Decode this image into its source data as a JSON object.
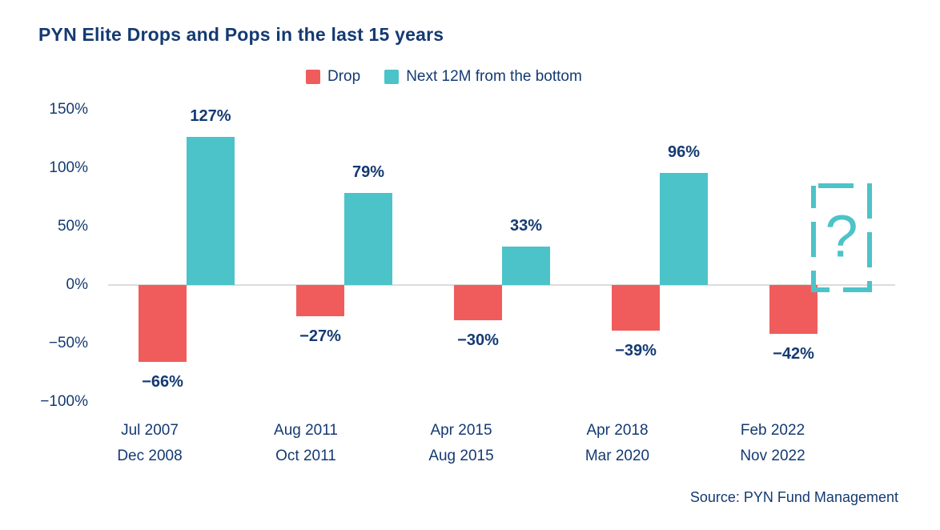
{
  "colors": {
    "navy": "#143A72",
    "drop_red": "#F05C5C",
    "pop_teal": "#4CC3C9",
    "zero_line": "#DCDCDC",
    "background": "#FFFFFF"
  },
  "chart_data": {
    "type": "bar",
    "title": "PYN Elite Drops and Pops in the last 15 years",
    "source": "Source: PYN Fund Management",
    "legend_position": "top",
    "grid": false,
    "legend": [
      {
        "label": "Drop",
        "color": "#F05C5C"
      },
      {
        "label": "Next 12M from the bottom",
        "color": "#4CC3C9"
      }
    ],
    "categories": [
      {
        "line1": "Jul 2007",
        "line2": "Dec 2008"
      },
      {
        "line1": "Aug 2011",
        "line2": "Oct 2011"
      },
      {
        "line1": "Apr 2015",
        "line2": "Aug 2015"
      },
      {
        "line1": "Apr 2018",
        "line2": "Mar 2020"
      },
      {
        "line1": "Feb 2022",
        "line2": "Nov 2022"
      }
    ],
    "series": [
      {
        "name": "Drop",
        "values": [
          -66,
          -27,
          -30,
          -39,
          -42
        ],
        "labels": [
          "−66%",
          "−27%",
          "−30%",
          "−39%",
          "−42%"
        ]
      },
      {
        "name": "Next 12M from the bottom",
        "values": [
          127,
          79,
          33,
          96,
          null
        ],
        "labels": [
          "127%",
          "79%",
          "33%",
          "96%",
          "?"
        ]
      }
    ],
    "unknown_marker": {
      "category_index": 4,
      "symbol": "?",
      "style": "dashed-teal-box",
      "approx_top_value": 85
    },
    "y_axis": {
      "range": [
        -100,
        150
      ],
      "ticks": [
        {
          "label": "150%",
          "value": 150
        },
        {
          "label": "100%",
          "value": 100
        },
        {
          "label": "50%",
          "value": 50
        },
        {
          "label": "0%",
          "value": 0
        },
        {
          "label": "−50%",
          "value": -50
        },
        {
          "label": "−100%",
          "value": -100
        }
      ]
    }
  }
}
